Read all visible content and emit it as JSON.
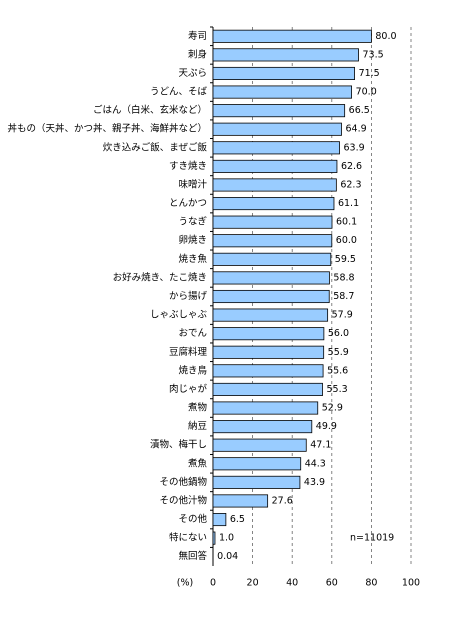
{
  "chart_data": {
    "type": "barh",
    "categories": [
      "寿司",
      "刺身",
      "天ぷら",
      "うどん、そば",
      "ごはん（白米、玄米など）",
      "丼もの（天丼、かつ丼、親子丼、海鮮丼など）",
      "炊き込みご飯、まぜご飯",
      "すき焼き",
      "味噌汁",
      "とんかつ",
      "うなぎ",
      "卵焼き",
      "焼き魚",
      "お好み焼き、たこ焼き",
      "から揚げ",
      "しゃぶしゃぶ",
      "おでん",
      "豆腐料理",
      "焼き鳥",
      "肉じゃが",
      "煮物",
      "納豆",
      "漬物、梅干し",
      "煮魚",
      "その他鍋物",
      "その他汁物",
      "その他",
      "特にない",
      "無回答"
    ],
    "values": [
      80.0,
      73.5,
      71.5,
      70.0,
      66.5,
      64.9,
      63.9,
      62.6,
      62.3,
      61.1,
      60.1,
      60.0,
      59.5,
      58.8,
      58.7,
      57.9,
      56.0,
      55.9,
      55.6,
      55.3,
      52.9,
      49.9,
      47.1,
      44.3,
      43.9,
      27.6,
      6.5,
      1.0,
      0.04
    ],
    "value_labels": [
      "80.0",
      "73.5",
      "71.5",
      "70.0",
      "66.5",
      "64.9",
      "63.9",
      "62.6",
      "62.3",
      "61.1",
      "60.1",
      "60.0",
      "59.5",
      "58.8",
      "58.7",
      "57.9",
      "56.0",
      "55.9",
      "55.6",
      "55.3",
      "52.9",
      "49.9",
      "47.1",
      "44.3",
      "43.9",
      "27.6",
      "6.5",
      "1.0",
      "0.04"
    ],
    "color": "#99ccff",
    "x_label": "(%)",
    "annotation": "n=11019",
    "xlim": [
      0,
      100
    ],
    "xticks": [
      0,
      20,
      40,
      60,
      80,
      100
    ],
    "grid": true
  }
}
